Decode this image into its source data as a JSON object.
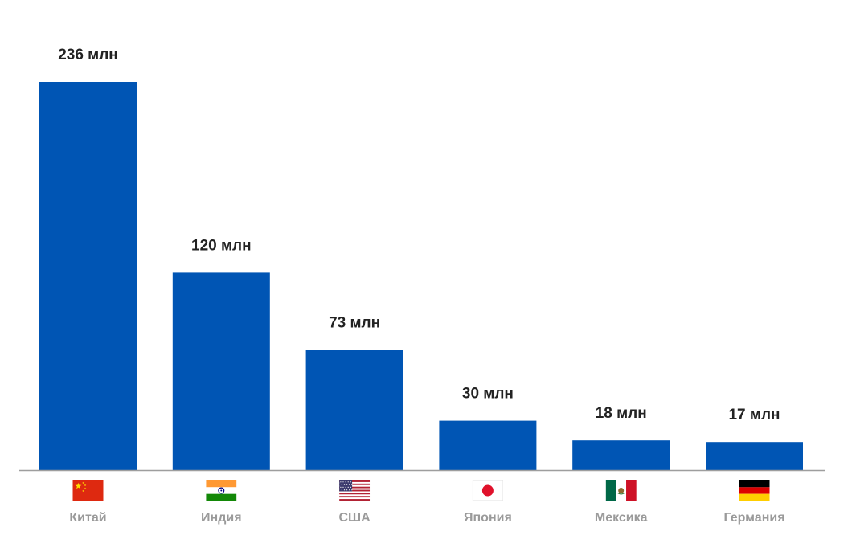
{
  "chart_data": {
    "type": "bar",
    "title": "",
    "xlabel": "",
    "ylabel": "",
    "ylim": [
      0,
      236
    ],
    "grid": false,
    "legend": "none",
    "bar_color": "#0055b4",
    "axis_color": "#9e9e9e",
    "value_label_color": "#222222",
    "category_label_color": "#9a9a9a",
    "categories": [
      "Китай",
      "Индия",
      "США",
      "Япония",
      "Мексика",
      "Германия"
    ],
    "values": [
      236,
      120,
      73,
      30,
      18,
      17
    ],
    "value_labels": [
      "236 млн",
      "120 млн",
      "73 млн",
      "30 млн",
      "18 млн",
      "17 млн"
    ],
    "flags": [
      "china-flag-icon",
      "india-flag-icon",
      "usa-flag-icon",
      "japan-flag-icon",
      "mexico-flag-icon",
      "germany-flag-icon"
    ]
  }
}
